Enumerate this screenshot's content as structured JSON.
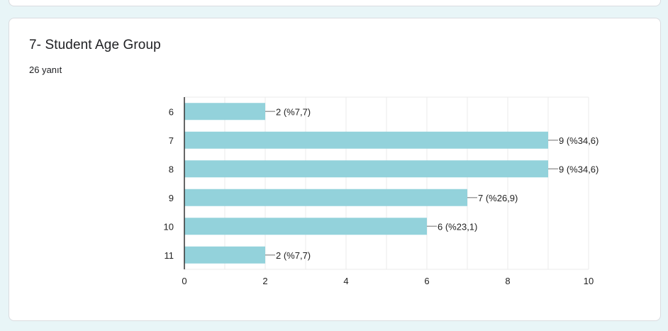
{
  "question": {
    "title": "7- Student Age Group",
    "response_count": "26 yanıt"
  },
  "colors": {
    "bar": "#93d2db",
    "background": "#e8f5f7",
    "gridline": "#ebebeb",
    "axis": "#333333"
  },
  "chart_data": {
    "type": "bar",
    "orientation": "horizontal",
    "title": "7- Student Age Group",
    "subtitle": "26 yanıt",
    "categories": [
      "6",
      "7",
      "8",
      "9",
      "10",
      "11"
    ],
    "values": [
      2,
      9,
      9,
      7,
      6,
      2
    ],
    "data_labels": [
      "2 (%7,7)",
      "9 (%34,6)",
      "9 (%34,6)",
      "7 (%26,9)",
      "6 (%23,1)",
      "2 (%7,7)"
    ],
    "percentages": [
      7.7,
      34.6,
      34.6,
      26.9,
      23.1,
      7.7
    ],
    "xlabel": "",
    "ylabel": "",
    "xlim": [
      0,
      10
    ],
    "x_ticks": [
      "0",
      "2",
      "4",
      "6",
      "8",
      "10"
    ],
    "grid": true,
    "legend": "none"
  }
}
